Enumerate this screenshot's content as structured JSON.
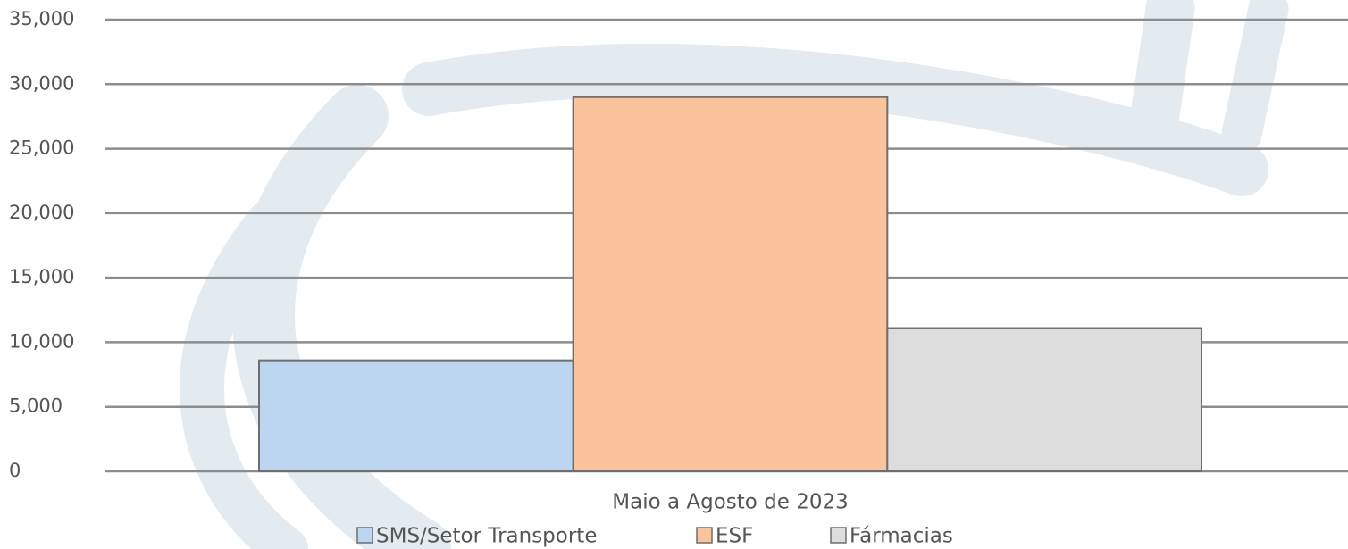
{
  "chart_data": {
    "type": "bar",
    "categories": [
      "Maio a Agosto de 2023"
    ],
    "series": [
      {
        "name": "SMS/Setor Transporte",
        "color": "#bcd6f2",
        "values": [
          8600
        ]
      },
      {
        "name": "ESF",
        "color": "#fbc39b",
        "values": [
          29000
        ]
      },
      {
        "name": "Fármacias",
        "color": "#dcdcdc",
        "values": [
          11100
        ]
      }
    ],
    "ylim": [
      0,
      35000
    ],
    "yticks": [
      0,
      {
        "value": 5000,
        "label": "5,000"
      },
      {
        "value": 10000,
        "label": "10,000"
      },
      {
        "value": 15000,
        "label": "15,000"
      },
      {
        "value": 20000,
        "label": "20,000"
      },
      {
        "value": 25000,
        "label": "25,000"
      },
      {
        "value": 30000,
        "label": "30,000"
      },
      {
        "value": 35000,
        "label": "35,000"
      }
    ],
    "grid": true,
    "legend": "bottom"
  }
}
